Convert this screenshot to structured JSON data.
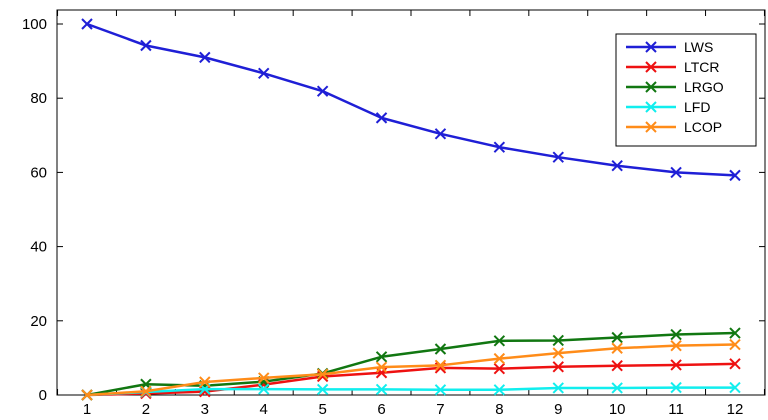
{
  "chart_data": {
    "type": "line",
    "title": "",
    "xlabel": "",
    "ylabel": "",
    "x": [
      1,
      2,
      3,
      4,
      5,
      6,
      7,
      8,
      9,
      10,
      11,
      12
    ],
    "ylim": [
      0,
      100
    ],
    "yticks": [
      0,
      20,
      40,
      60,
      80,
      100
    ],
    "grid": false,
    "legend_position": "top-right",
    "marker": "x",
    "series": [
      {
        "name": "LWS",
        "color": "#1f1fd6",
        "values": [
          100,
          94.2,
          91.0,
          86.7,
          81.9,
          74.7,
          70.4,
          66.8,
          64.1,
          61.8,
          60.0,
          59.2
        ]
      },
      {
        "name": "LTCR",
        "color": "#ee1111",
        "values": [
          0,
          0.4,
          0.9,
          2.8,
          5.0,
          6.0,
          7.3,
          7.1,
          7.6,
          7.9,
          8.1,
          8.4
        ]
      },
      {
        "name": "LRGO",
        "color": "#117711",
        "values": [
          0,
          2.9,
          2.5,
          3.6,
          5.8,
          10.3,
          12.4,
          14.6,
          14.7,
          15.5,
          16.3,
          16.7
        ]
      },
      {
        "name": "LFD",
        "color": "#11eeee",
        "values": [
          0,
          0.8,
          1.6,
          1.6,
          1.5,
          1.5,
          1.4,
          1.4,
          1.9,
          1.9,
          2.0,
          2.0
        ]
      },
      {
        "name": "LCOP",
        "color": "#ff8c19",
        "values": [
          0,
          1.0,
          3.5,
          4.6,
          5.6,
          7.5,
          8.0,
          9.8,
          11.3,
          12.6,
          13.3,
          13.6
        ]
      }
    ]
  }
}
